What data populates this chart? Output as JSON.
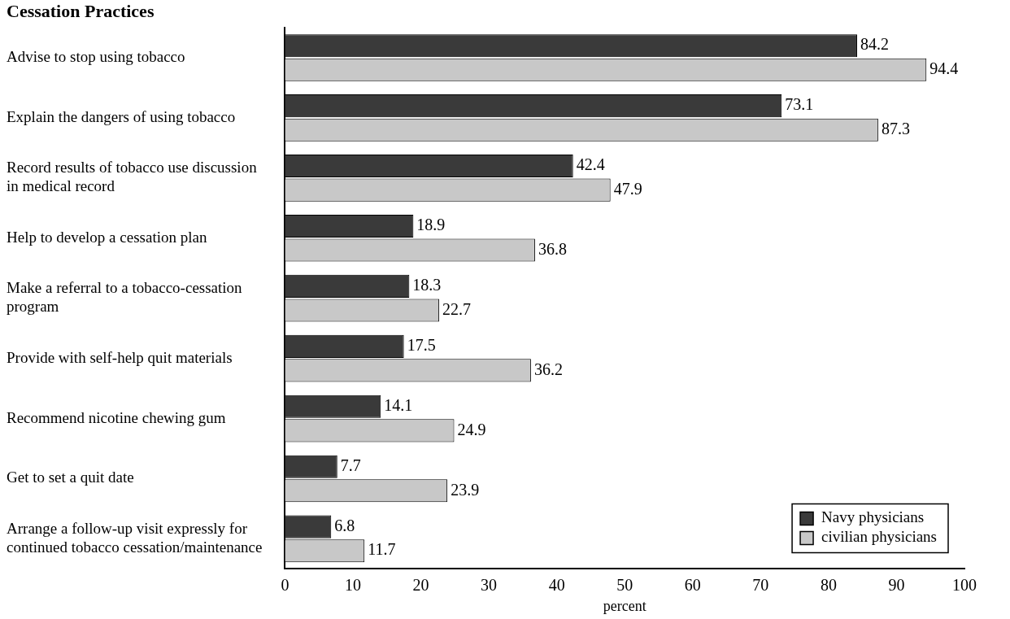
{
  "chart_data": {
    "type": "bar",
    "orientation": "horizontal",
    "title": "Cessation Practices",
    "xlabel": "percent",
    "categories": [
      "Advise to stop using tobacco",
      "Explain the dangers of using tobacco",
      "Record results of tobacco use discussion in medical record",
      "Help to develop a cessation plan",
      "Make a referral to a tobacco-cessation program",
      "Provide with self-help quit materials",
      "Recommend nicotine chewing gum",
      "Get to set a quit date",
      "Arrange a follow-up visit expressly for continued tobacco cessation/maintenance"
    ],
    "series": [
      {
        "name": "Navy physicians",
        "color": "#3a3a3a",
        "values": [
          84.2,
          73.1,
          42.4,
          18.9,
          18.3,
          17.5,
          14.1,
          7.7,
          6.8
        ]
      },
      {
        "name": "civilian physicians",
        "color": "#c8c8c8",
        "values": [
          94.4,
          87.3,
          47.9,
          36.8,
          22.7,
          36.2,
          24.9,
          23.9,
          11.7
        ]
      }
    ],
    "xlim": [
      0,
      100
    ],
    "xticks": [
      0,
      10,
      20,
      30,
      40,
      50,
      60,
      70,
      80,
      90,
      100
    ],
    "data_labels": true,
    "grid": false,
    "legend": "bottom right"
  }
}
